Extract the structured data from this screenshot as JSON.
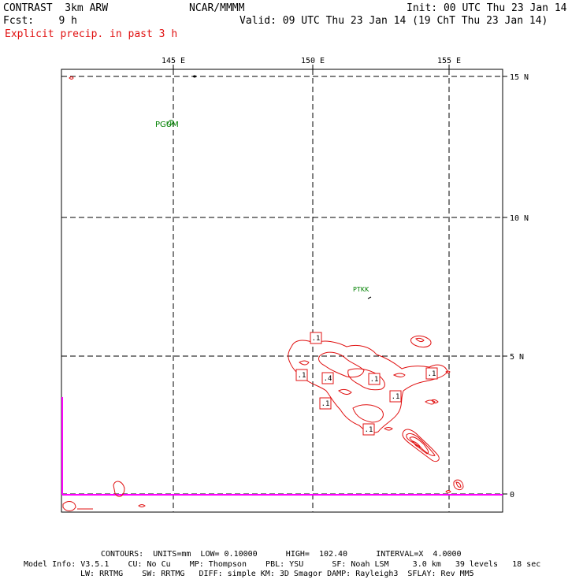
{
  "header": {
    "model": "CONTRAST  3km ARW",
    "org": "NCAR/MMMM",
    "init": "Init: 00 UTC Thu 23 Jan 14",
    "fcst": "Fcst:    9 h",
    "valid": "Valid: 09 UTC Thu 23 Jan 14 (19 ChT Thu 23 Jan 14)",
    "field": "Explicit precip. in past 3 h"
  },
  "map": {
    "lon_labels": [
      "145 E",
      "150 E",
      "155 E"
    ],
    "lat_labels": [
      "15 N",
      "10 N",
      "5 N",
      "0"
    ],
    "stations": [
      "PGUM",
      "PTKK"
    ],
    "contour_labels": [
      ".1",
      ".1",
      ".4",
      ".1",
      ".1",
      ".1",
      ".1",
      ".1"
    ],
    "colors": {
      "contour": "#e01010",
      "station": "#008000",
      "axis_line": "#ff00ff"
    }
  },
  "footer": {
    "contours": "CONTOURS:  UNITS=mm  LOW= 0.10000      HIGH=  102.40      INTERVAL=X  4.0000",
    "model_info_1": "Model Info: V3.5.1    CU: No Cu    MP: Thompson    PBL: YSU      SF: Noah LSM     3.0 km   39 levels   18 sec",
    "model_info_2": "LW: RRTMG    SW: RRTMG   DIFF: simple KM: 3D Smagor DAMP: Rayleigh3  SFLAY: Rev MM5"
  }
}
